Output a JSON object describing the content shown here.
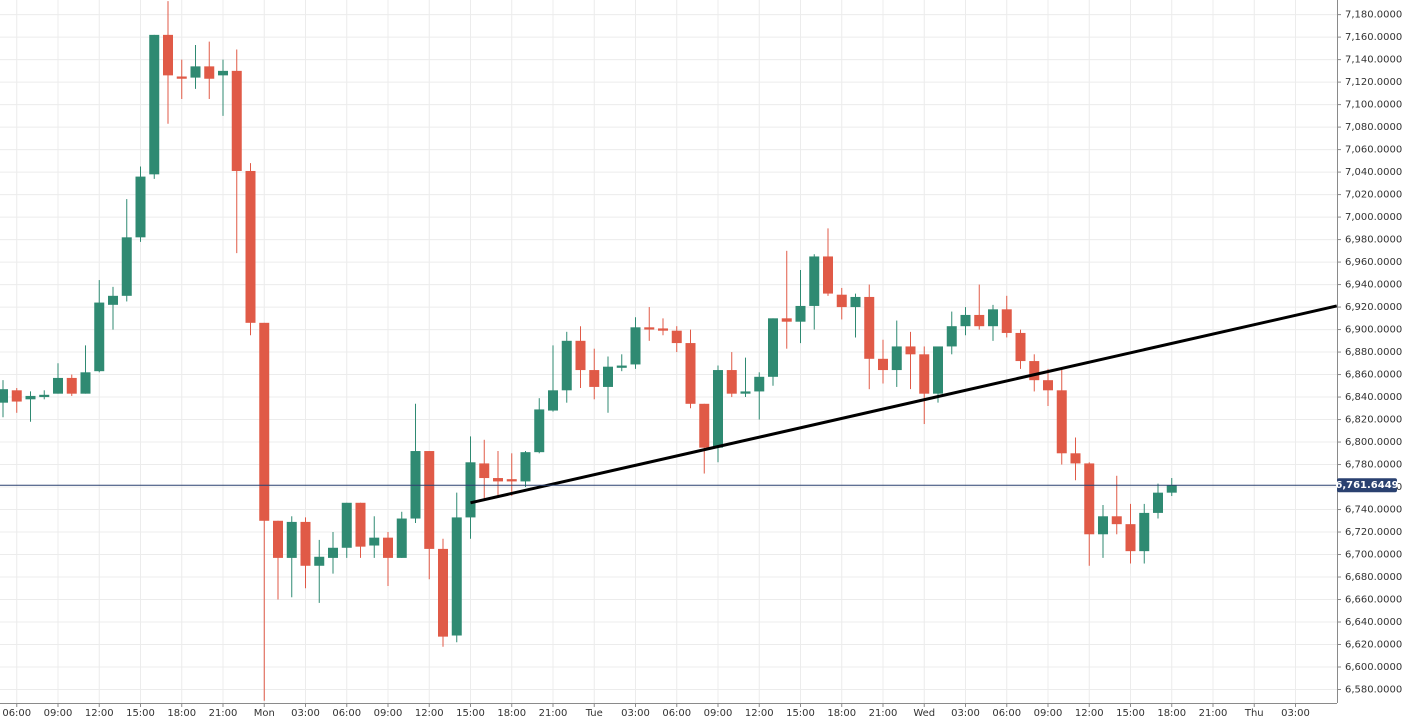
{
  "chart_data": {
    "type": "candlestick",
    "categories": [
      null,
      "06:00",
      null,
      null,
      "09:00",
      null,
      null,
      "12:00",
      null,
      null,
      "15:00",
      null,
      null,
      "18:00",
      null,
      null,
      "21:00",
      null,
      null,
      "Mon",
      null,
      null,
      "03:00",
      null,
      null,
      "06:00",
      null,
      null,
      "09:00",
      null,
      null,
      "12:00",
      null,
      null,
      "15:00",
      null,
      null,
      "18:00",
      null,
      null,
      "21:00",
      null,
      null,
      "Tue",
      null,
      null,
      "03:00",
      null,
      null,
      "06:00",
      null,
      null,
      "09:00",
      null,
      null,
      "12:00",
      null,
      null,
      "15:00",
      null,
      null,
      "18:00",
      null,
      null,
      "21:00",
      null,
      null,
      "Wed",
      null,
      null,
      "03:00",
      null,
      null,
      "06:00",
      null,
      null,
      "09:00",
      null,
      null,
      "12:00",
      null,
      null,
      "15:00",
      null,
      null,
      "18:00",
      null,
      null,
      "21:00",
      null,
      null,
      "Thu",
      null,
      null,
      "03:00",
      null,
      null
    ],
    "open": [
      6835,
      6846,
      6838,
      6840,
      6843,
      6857,
      6843,
      6863,
      6922,
      6930,
      6982,
      7038,
      7162,
      7125,
      7124,
      7134,
      7126,
      7130,
      7041,
      6906,
      6730,
      6697,
      6729,
      6690,
      6697,
      6706,
      6746,
      6708,
      6715,
      6697,
      6732,
      6792,
      6705,
      6628,
      6733,
      6781,
      6768,
      6767,
      6765,
      6791,
      6828,
      6846,
      6890,
      6864,
      6849,
      6866,
      6869,
      6902,
      6901,
      6899,
      6888,
      6834,
      6795,
      6864,
      6843,
      6845,
      6858,
      6910,
      6907,
      6921,
      6965,
      6931,
      6920,
      6929,
      6874,
      6864,
      6885,
      6878,
      6843,
      6885,
      6903,
      6913,
      6903,
      6918,
      6897,
      6872,
      6855,
      6846,
      6790,
      6781,
      6718,
      6734,
      6727,
      6703,
      6737,
      6755,
      null,
      null,
      null,
      null,
      null,
      null,
      null,
      null,
      null,
      null,
      null
    ],
    "high": [
      6855,
      6848,
      6845,
      6846,
      6870,
      6860,
      6886,
      6944,
      6938,
      7016,
      7045,
      7162,
      7192,
      7140,
      7153,
      7156,
      7140,
      7149,
      7048,
      6906,
      6730,
      6734,
      6733,
      6713,
      6720,
      6746,
      6746,
      6734,
      6720,
      6738,
      6834,
      6792,
      6714,
      6755,
      6805,
      6802,
      6792,
      6790,
      6792,
      6839,
      6886,
      6898,
      6903,
      6883,
      6876,
      6878,
      6911,
      6920,
      6910,
      6903,
      6900,
      6834,
      6868,
      6880,
      6875,
      6862,
      6910,
      6970,
      6953,
      6967,
      6990,
      6937,
      6932,
      6940,
      6891,
      6908,
      6898,
      6885,
      6885,
      6916,
      6920,
      6940,
      6922,
      6930,
      6900,
      6878,
      6865,
      6865,
      6804,
      6782,
      6744,
      6770,
      6745,
      6745,
      6763,
      6768,
      null,
      null,
      null,
      null,
      null,
      null,
      null,
      null,
      null,
      null,
      null
    ],
    "low": [
      6822,
      6826,
      6818,
      6838,
      6843,
      6841,
      6843,
      6862,
      6900,
      6925,
      6978,
      7034,
      7083,
      7105,
      7114,
      7105,
      7090,
      6968,
      6895,
      6570,
      6660,
      6662,
      6670,
      6657,
      6683,
      6697,
      6697,
      6697,
      6672,
      6697,
      6728,
      6678,
      6618,
      6622,
      6714,
      6748,
      6752,
      6752,
      6760,
      6790,
      6827,
      6835,
      6848,
      6838,
      6826,
      6863,
      6865,
      6890,
      6895,
      6880,
      6830,
      6772,
      6782,
      6840,
      6840,
      6820,
      6850,
      6883,
      6888,
      6900,
      6930,
      6909,
      6893,
      6847,
      6852,
      6849,
      6847,
      6816,
      6835,
      6878,
      6895,
      6900,
      6890,
      6893,
      6865,
      6845,
      6832,
      6780,
      6766,
      6690,
      6697,
      6718,
      6692,
      6692,
      6732,
      6752,
      null,
      null,
      null,
      null,
      null,
      null,
      null,
      null,
      null,
      null,
      null
    ],
    "close": [
      6847,
      6836,
      6841,
      6842,
      6857,
      6843,
      6862,
      6924,
      6930,
      6982,
      7036,
      7162,
      7126,
      7123,
      7134,
      7123,
      7130,
      7041,
      6906,
      6730,
      6697,
      6729,
      6690,
      6698,
      6706,
      6746,
      6707,
      6715,
      6697,
      6732,
      6792,
      6705,
      6627,
      6733,
      6782,
      6768,
      6765,
      6765,
      6791,
      6829,
      6846,
      6890,
      6864,
      6849,
      6867,
      6868,
      6902,
      6900,
      6899,
      6888,
      6834,
      6795,
      6864,
      6843,
      6845,
      6858,
      6910,
      6907,
      6921,
      6965,
      6932,
      6920,
      6929,
      6874,
      6864,
      6885,
      6878,
      6843,
      6885,
      6903,
      6913,
      6903,
      6918,
      6897,
      6872,
      6855,
      6846,
      6790,
      6781,
      6718,
      6734,
      6727,
      6703,
      6737,
      6755,
      6761.6449,
      null,
      null,
      null,
      null,
      null,
      null,
      null,
      null,
      null,
      null,
      null
    ],
    "up_color": "#2f8a72",
    "down_color": "#e05a47",
    "last_price": {
      "value": 6761.6449,
      "label": "6,761.6449",
      "color": "#2a4170"
    },
    "trendline": {
      "x": [
        34,
        97
      ],
      "y": [
        6746,
        6921
      ],
      "color": "#000000"
    },
    "ylim": [
      6568,
      7193
    ],
    "yticks": [
      {
        "value": 6580,
        "label": "6,580.0000"
      },
      {
        "value": 6600,
        "label": "6,600.0000"
      },
      {
        "value": 6620,
        "label": "6,620.0000"
      },
      {
        "value": 6640,
        "label": "6,640.0000"
      },
      {
        "value": 6660,
        "label": "6,660.0000"
      },
      {
        "value": 6680,
        "label": "6,680.0000"
      },
      {
        "value": 6700,
        "label": "6,700.0000"
      },
      {
        "value": 6720,
        "label": "6,720.0000"
      },
      {
        "value": 6740,
        "label": "6,740.0000"
      },
      {
        "value": 6760,
        "label": "6,760.0000"
      },
      {
        "value": 6780,
        "label": "6,780.0000"
      },
      {
        "value": 6800,
        "label": "6,800.0000"
      },
      {
        "value": 6820,
        "label": "6,820.0000"
      },
      {
        "value": 6840,
        "label": "6,840.0000"
      },
      {
        "value": 6860,
        "label": "6,860.0000"
      },
      {
        "value": 6880,
        "label": "6,880.0000"
      },
      {
        "value": 6900,
        "label": "6,900.0000"
      },
      {
        "value": 6920,
        "label": "6,920.0000"
      },
      {
        "value": 6940,
        "label": "6,940.0000"
      },
      {
        "value": 6960,
        "label": "6,960.0000"
      },
      {
        "value": 6980,
        "label": "6,980.0000"
      },
      {
        "value": 7000,
        "label": "7,000.0000"
      },
      {
        "value": 7020,
        "label": "7,020.0000"
      },
      {
        "value": 7040,
        "label": "7,040.0000"
      },
      {
        "value": 7060,
        "label": "7,060.0000"
      },
      {
        "value": 7080,
        "label": "7,080.0000"
      },
      {
        "value": 7100,
        "label": "7,100.0000"
      },
      {
        "value": 7120,
        "label": "7,120.0000"
      },
      {
        "value": 7140,
        "label": "7,140.0000"
      },
      {
        "value": 7160,
        "label": "7,160.0000"
      },
      {
        "value": 7180,
        "label": "7,180.0000"
      }
    ],
    "grid": true
  }
}
